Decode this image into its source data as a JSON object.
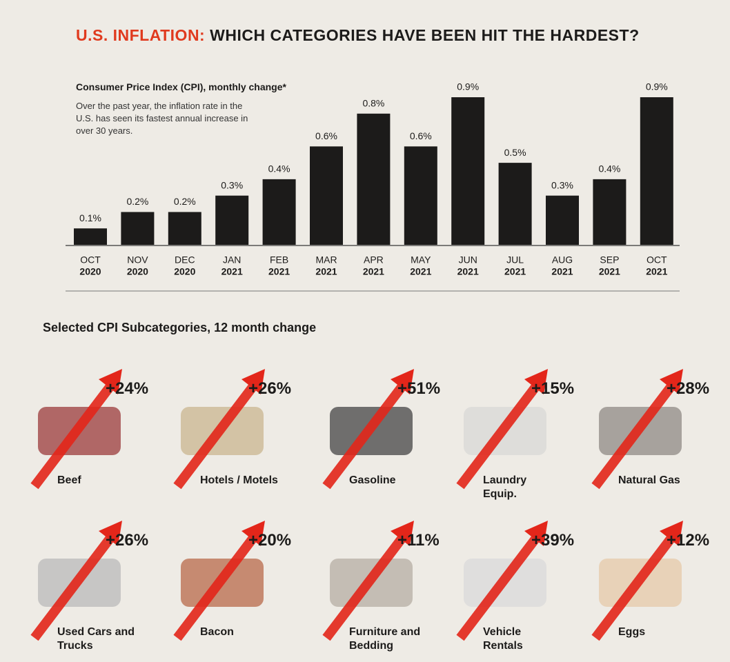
{
  "header": {
    "highlight": "U.S. INFLATION:",
    "title": "WHICH CATEGORIES HAVE BEEN HIT THE HARDEST?"
  },
  "chart_data": {
    "type": "bar",
    "title": "Consumer Price Index (CPI), monthly change*",
    "subtitle": "Over the past year, the inflation rate in the U.S. has seen its fastest annual increase in over 30 years.",
    "categories": [
      [
        "OCT",
        "2020"
      ],
      [
        "NOV",
        "2020"
      ],
      [
        "DEC",
        "2020"
      ],
      [
        "JAN",
        "2021"
      ],
      [
        "FEB",
        "2021"
      ],
      [
        "MAR",
        "2021"
      ],
      [
        "APR",
        "2021"
      ],
      [
        "MAY",
        "2021"
      ],
      [
        "JUN",
        "2021"
      ],
      [
        "JUL",
        "2021"
      ],
      [
        "AUG",
        "2021"
      ],
      [
        "SEP",
        "2021"
      ],
      [
        "OCT",
        "2021"
      ]
    ],
    "values": [
      0.1,
      0.2,
      0.2,
      0.3,
      0.4,
      0.6,
      0.8,
      0.6,
      0.9,
      0.5,
      0.3,
      0.4,
      0.9
    ],
    "value_labels": [
      "0.1%",
      "0.2%",
      "0.2%",
      "0.3%",
      "0.4%",
      "0.6%",
      "0.8%",
      "0.6%",
      "0.9%",
      "0.5%",
      "0.3%",
      "0.4%",
      "0.9%"
    ],
    "color": "#1c1b1a"
  },
  "subcategories": {
    "title": "Selected CPI Subcategories, 12 month change",
    "items": [
      {
        "label": "Beef",
        "change": "+24%"
      },
      {
        "label": "Hotels / Motels",
        "change": "+26%"
      },
      {
        "label": "Gasoline",
        "change": "+51%"
      },
      {
        "label": "Laundry Equip.",
        "change": "+15%"
      },
      {
        "label": "Natural Gas",
        "change": "+28%"
      },
      {
        "label": "Used Cars and Trucks",
        "change": "+26%"
      },
      {
        "label": "Bacon",
        "change": "+20%"
      },
      {
        "label": "Furniture and Bedding",
        "change": "+11%"
      },
      {
        "label": "Vehicle Rentals",
        "change": "+39%"
      },
      {
        "label": "Eggs",
        "change": "+12%"
      }
    ]
  }
}
